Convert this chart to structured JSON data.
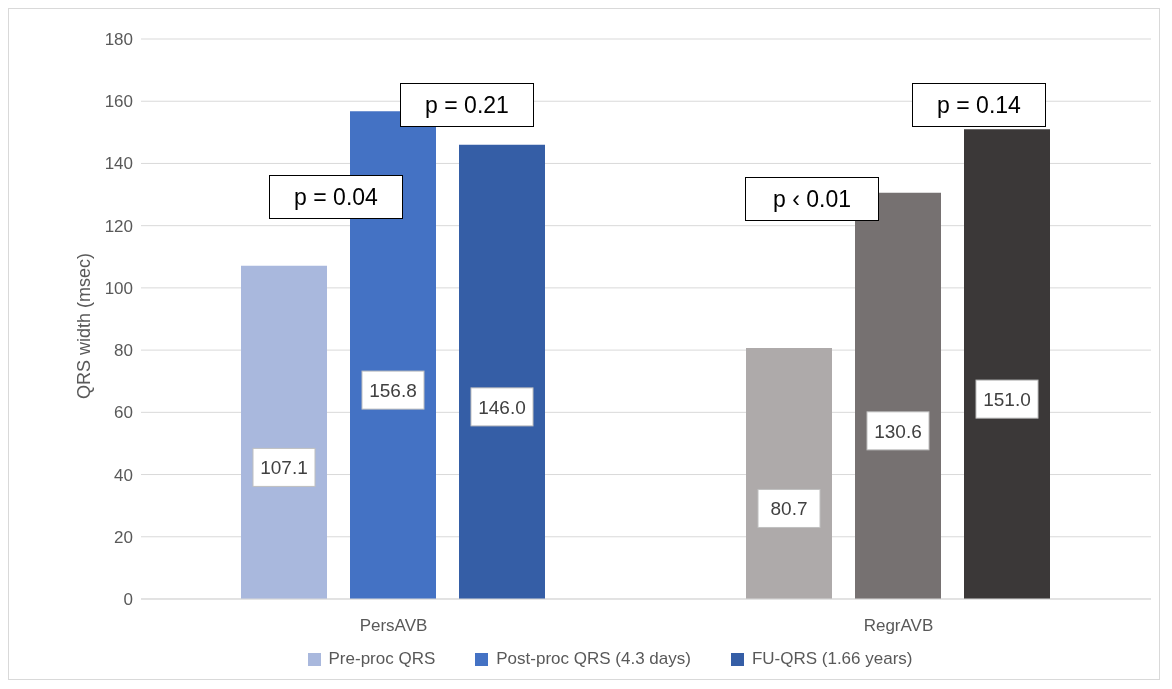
{
  "chart_data": {
    "type": "bar",
    "ylabel": "QRS width (msec)",
    "categories": [
      "PersAVB",
      "RegrAVB"
    ],
    "series": [
      {
        "name": "Pre-proc QRS",
        "color": "#a9b8dd",
        "colors": [
          "#a9b8dd",
          "#aeaaaa"
        ],
        "values": [
          107.1,
          80.7
        ],
        "value_labels": [
          "107.1",
          "80.7"
        ]
      },
      {
        "name": "Post-proc QRS (4.3 days)",
        "color": "#4472c4",
        "colors": [
          "#4472c4",
          "#767171"
        ],
        "values": [
          156.8,
          130.6
        ],
        "value_labels": [
          "156.8",
          "130.6"
        ]
      },
      {
        "name": "FU-QRS (1.66 years)",
        "color": "#355ea6",
        "colors": [
          "#355ea6",
          "#3b3838"
        ],
        "values": [
          146.0,
          151.0
        ],
        "value_labels": [
          "146.0",
          "151.0"
        ]
      }
    ],
    "ylim": [
      0,
      180
    ],
    "yticks": [
      0,
      20,
      40,
      60,
      80,
      100,
      120,
      140,
      160,
      180
    ],
    "grid": "y",
    "legend": "bottom",
    "annotations": [
      "p = 0.04",
      "p = 0.21",
      "p ‹ 0.01",
      "p = 0.14"
    ]
  }
}
